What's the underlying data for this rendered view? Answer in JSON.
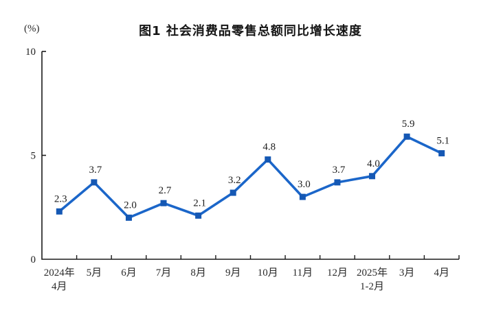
{
  "page": {
    "background_color": "#ffffff"
  },
  "chart_data": {
    "type": "line",
    "title": "图1 社会消费品零售总额同比增长速度",
    "unit_label": "(%)",
    "categories": [
      [
        "2024年",
        "4月"
      ],
      [
        "5月"
      ],
      [
        "6月"
      ],
      [
        "7月"
      ],
      [
        "8月"
      ],
      [
        "9月"
      ],
      [
        "10月"
      ],
      [
        "11月"
      ],
      [
        "12月"
      ],
      [
        "2025年",
        "1-2月"
      ],
      [
        "3月"
      ],
      [
        "4月"
      ]
    ],
    "values": [
      2.3,
      3.7,
      2.0,
      2.7,
      2.1,
      3.2,
      4.8,
      3.0,
      3.7,
      4.0,
      5.9,
      5.1
    ],
    "data_labels": [
      "2.3",
      "3.7",
      "2.0",
      "2.7",
      "2.1",
      "3.2",
      "4.8",
      "3.0",
      "3.7",
      "4.0",
      "5.9",
      "5.1"
    ],
    "ylim": [
      0,
      10
    ],
    "yticks": [
      0,
      5,
      10
    ],
    "grid": false,
    "legend": false,
    "marker": "square",
    "line_color": "#1b66c9",
    "marker_color": "#1558b4",
    "axis_color": "#1a1a1a",
    "text_color": "#1c1c1c"
  }
}
